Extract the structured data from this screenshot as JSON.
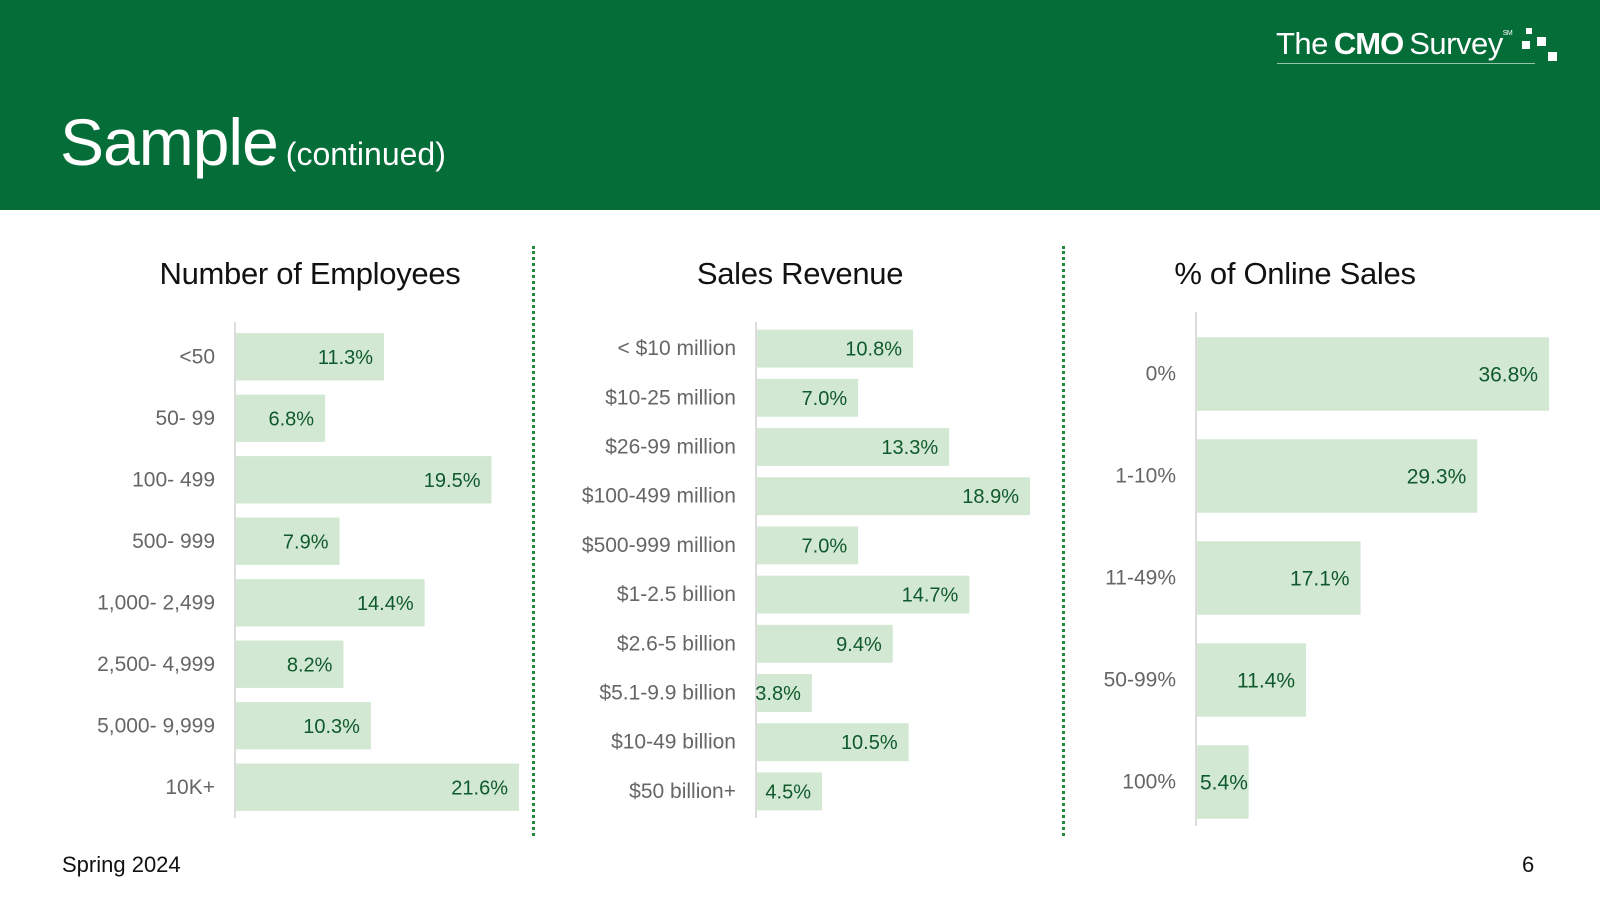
{
  "colors": {
    "header_bg": "#056d38",
    "bar_fill": "#d3e8d2",
    "value_text": "#0f5a2c",
    "category_text": "#666666",
    "axis_line": "#d0d0d0",
    "divider": "#1f8a3a"
  },
  "header": {
    "title": "Sample",
    "subtitle": "(continued)"
  },
  "logo": {
    "the": "The",
    "cmo": "CMO",
    "survey": "Survey",
    "mark": "SM"
  },
  "footer": {
    "season": "Spring 2024",
    "page_number": "6"
  },
  "chart_data": [
    {
      "type": "bar",
      "orientation": "horizontal",
      "title": "Number of Employees",
      "categories": [
        "<50",
        "50- 99",
        "100- 499",
        "500- 999",
        "1,000- 2,499",
        "2,500- 4,999",
        "5,000- 9,999",
        "10K+"
      ],
      "values": [
        11.3,
        6.8,
        19.5,
        7.9,
        14.4,
        8.2,
        10.3,
        21.6
      ],
      "value_labels": [
        "11.3%",
        "6.8%",
        "19.5%",
        "7.9%",
        "14.4%",
        "8.2%",
        "10.3%",
        "21.6%"
      ],
      "unit": "%",
      "xlim": [
        0,
        21.6
      ],
      "grid": false
    },
    {
      "type": "bar",
      "orientation": "horizontal",
      "title": "Sales Revenue",
      "categories": [
        "< $10 million",
        "$10-25 million",
        "$26-99 million",
        "$100-499 million",
        "$500-999 million",
        "$1-2.5 billion",
        "$2.6-5 billion",
        "$5.1-9.9 billion",
        "$10-49 billion",
        "$50 billion+"
      ],
      "values": [
        10.8,
        7.0,
        13.3,
        18.9,
        7.0,
        14.7,
        9.4,
        3.8,
        10.5,
        4.5
      ],
      "value_labels": [
        "10.8%",
        "7.0%",
        "13.3%",
        "18.9%",
        "7.0%",
        "14.7%",
        "9.4%",
        "3.8%",
        "10.5%",
        "4.5%"
      ],
      "unit": "%",
      "xlim": [
        0,
        18.9
      ],
      "grid": false
    },
    {
      "type": "bar",
      "orientation": "horizontal",
      "title": "% of Online Sales",
      "categories": [
        "0%",
        "1-10%",
        "11-49%",
        "50-99%",
        "100%"
      ],
      "values": [
        36.8,
        29.3,
        17.1,
        11.4,
        5.4
      ],
      "value_labels": [
        "36.8%",
        "29.3%",
        "17.1%",
        "11.4%",
        "5.4%"
      ],
      "unit": "%",
      "xlim": [
        0,
        36.8
      ],
      "grid": false
    }
  ]
}
